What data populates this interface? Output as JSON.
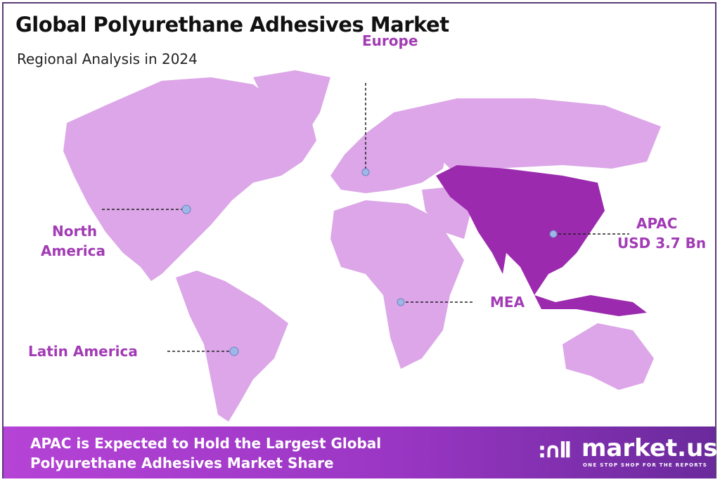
{
  "header": {
    "title": "Global Polyurethane Adhesives Market",
    "subtitle": "Regional Analysis in 2024"
  },
  "regions": [
    {
      "name": "Europe",
      "highlighted": false
    },
    {
      "name": "North America",
      "line1": "North",
      "line2": "America",
      "highlighted": false
    },
    {
      "name": "Latin America",
      "highlighted": false
    },
    {
      "name": "MEA",
      "highlighted": false
    },
    {
      "name": "APAC",
      "value": "USD 3.7 Bn",
      "highlighted": true
    }
  ],
  "colors": {
    "land": "#dca6e8",
    "highlight": "#9b2aae",
    "label": "#a23bb5",
    "marker": "#9fb6e6"
  },
  "footer": {
    "line1": "APAC is Expected to Hold the Largest Global",
    "line2": "Polyurethane Adhesives Market Share",
    "logo_name": "market.us",
    "logo_tagline": "ONE STOP SHOP FOR THE REPORTS"
  }
}
